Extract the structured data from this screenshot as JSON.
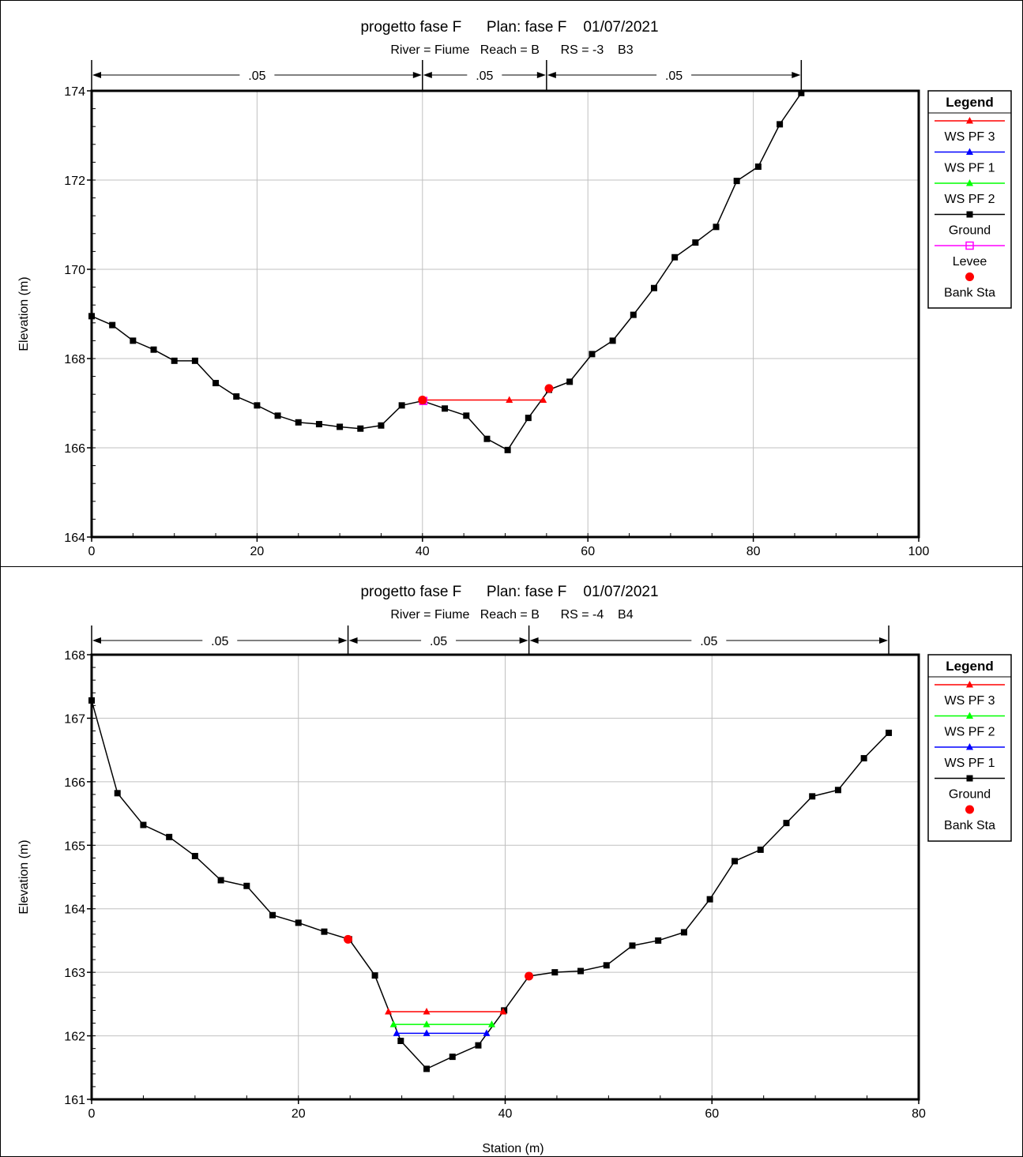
{
  "chart_data": [
    {
      "type": "line",
      "title": "progetto fase F      Plan: fase F    01/07/2021",
      "subtitle": "River = Fiume   Reach = B      RS = -3    B3",
      "xlabel": "",
      "ylabel": "Elevation (m)",
      "xlim": [
        0,
        100
      ],
      "ylim": [
        164,
        174
      ],
      "xticks": [
        0,
        20,
        40,
        60,
        80,
        100
      ],
      "yticks": [
        164,
        166,
        168,
        170,
        172,
        174
      ],
      "grid": true,
      "legend_position": "right",
      "manning": {
        "breaks": [
          0,
          40,
          55,
          85.8
        ],
        "labels": [
          ".05",
          ".05",
          ".05"
        ]
      },
      "legend": {
        "title": "Legend",
        "entries": [
          {
            "name": "WS PF 3",
            "color": "#ff0000",
            "marker": "triangle"
          },
          {
            "name": "WS PF 1",
            "color": "#0000ff",
            "marker": "triangle"
          },
          {
            "name": "WS PF 2",
            "color": "#00ff00",
            "marker": "triangle"
          },
          {
            "name": "Ground",
            "color": "#000000",
            "marker": "square"
          },
          {
            "name": "Levee",
            "color": "#ff00ff",
            "marker": "open-square"
          },
          {
            "name": "Bank Sta",
            "color": "#ff0000",
            "marker": "circle"
          }
        ]
      },
      "series": [
        {
          "name": "Ground",
          "color": "#000000",
          "marker": "square",
          "x": [
            0,
            2.5,
            5,
            7.5,
            10,
            12.5,
            15,
            17.5,
            20,
            22.5,
            25,
            27.5,
            30,
            32.5,
            35,
            37.5,
            40,
            42.7,
            45.3,
            47.8,
            50.3,
            52.8,
            55.3,
            57.8,
            60.5,
            63,
            65.5,
            68,
            70.5,
            73,
            75.5,
            78,
            80.6,
            83.2,
            85.8
          ],
          "y": [
            168.95,
            168.75,
            168.4,
            168.2,
            167.95,
            167.95,
            167.45,
            167.15,
            166.95,
            166.72,
            166.57,
            166.53,
            166.47,
            166.43,
            166.5,
            166.95,
            167.05,
            166.88,
            166.72,
            166.2,
            165.95,
            166.67,
            167.3,
            167.48,
            168.1,
            168.4,
            168.98,
            169.58,
            170.27,
            170.6,
            170.95,
            171.98,
            172.3,
            173.25,
            173.95
          ]
        },
        {
          "name": "WS PF 3",
          "color": "#ff0000",
          "marker": "triangle",
          "x": [
            40.2,
            50.5,
            54.6
          ],
          "y": [
            167.07,
            167.07,
            167.07
          ]
        },
        {
          "name": "WS PF 1",
          "color": "#0000ff",
          "marker": "triangle",
          "x": [],
          "y": []
        },
        {
          "name": "WS PF 2",
          "color": "#00ff00",
          "marker": "triangle",
          "x": [],
          "y": []
        },
        {
          "name": "Levee",
          "color": "#ff00ff",
          "marker": "open-square",
          "x": [
            40.1
          ],
          "y": [
            167.05
          ]
        },
        {
          "name": "Bank Sta",
          "color": "#ff0000",
          "marker": "circle",
          "x": [
            40.0,
            55.3
          ],
          "y": [
            167.07,
            167.33
          ]
        }
      ]
    },
    {
      "type": "line",
      "title": "progetto fase F      Plan: fase F    01/07/2021",
      "subtitle": "River = Fiume   Reach = B      RS = -4    B4",
      "xlabel": "Station (m)",
      "ylabel": "Elevation (m)",
      "xlim": [
        0,
        80
      ],
      "ylim": [
        161,
        168
      ],
      "xticks": [
        0,
        20,
        40,
        60,
        80
      ],
      "yticks": [
        161,
        162,
        163,
        164,
        165,
        166,
        167,
        168
      ],
      "grid": true,
      "legend_position": "right",
      "manning": {
        "breaks": [
          0,
          24.8,
          42.3,
          77.1
        ],
        "labels": [
          ".05",
          ".05",
          ".05"
        ]
      },
      "legend": {
        "title": "Legend",
        "entries": [
          {
            "name": "WS PF 3",
            "color": "#ff0000",
            "marker": "triangle"
          },
          {
            "name": "WS PF 2",
            "color": "#00ff00",
            "marker": "triangle"
          },
          {
            "name": "WS PF 1",
            "color": "#0000ff",
            "marker": "triangle"
          },
          {
            "name": "Ground",
            "color": "#000000",
            "marker": "square"
          },
          {
            "name": "Bank Sta",
            "color": "#ff0000",
            "marker": "circle"
          }
        ]
      },
      "series": [
        {
          "name": "Ground",
          "color": "#000000",
          "marker": "square",
          "x": [
            0,
            2.5,
            5,
            7.5,
            10,
            12.5,
            15,
            17.5,
            20,
            22.5,
            24.9,
            27.4,
            29.9,
            32.4,
            34.9,
            37.4,
            39.9,
            42.3,
            44.8,
            47.3,
            49.8,
            52.3,
            54.8,
            57.3,
            59.8,
            62.2,
            64.7,
            67.2,
            69.7,
            72.2,
            74.7,
            77.1
          ],
          "y": [
            167.28,
            165.82,
            165.32,
            165.13,
            164.83,
            164.45,
            164.36,
            163.9,
            163.78,
            163.64,
            163.52,
            162.95,
            161.92,
            161.48,
            161.67,
            161.85,
            162.4,
            162.94,
            163.0,
            163.02,
            163.11,
            163.42,
            163.5,
            163.63,
            164.15,
            164.75,
            164.93,
            165.35,
            165.77,
            165.87,
            166.37,
            166.77
          ]
        },
        {
          "name": "WS PF 3",
          "color": "#ff0000",
          "marker": "triangle",
          "x": [
            28.7,
            32.4,
            39.8
          ],
          "y": [
            162.38,
            162.38,
            162.38
          ]
        },
        {
          "name": "WS PF 2",
          "color": "#00ff00",
          "marker": "triangle",
          "x": [
            29.2,
            32.4,
            38.7
          ],
          "y": [
            162.18,
            162.18,
            162.18
          ]
        },
        {
          "name": "WS PF 1",
          "color": "#0000ff",
          "marker": "triangle",
          "x": [
            29.5,
            32.4,
            38.2
          ],
          "y": [
            162.04,
            162.04,
            162.04
          ]
        },
        {
          "name": "Bank Sta",
          "color": "#ff0000",
          "marker": "circle",
          "x": [
            24.8,
            42.3
          ],
          "y": [
            163.52,
            162.94
          ]
        }
      ]
    }
  ]
}
